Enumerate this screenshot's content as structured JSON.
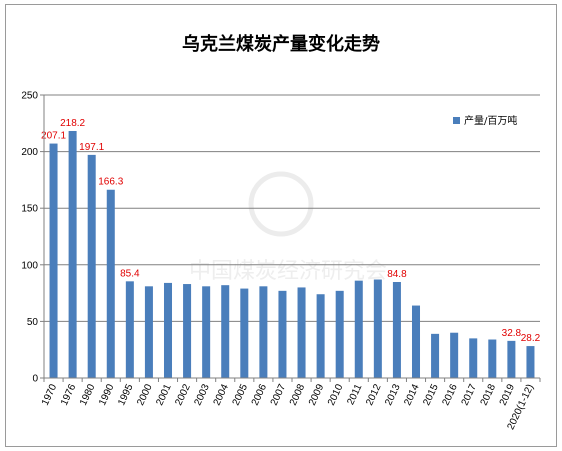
{
  "chart_data": {
    "type": "bar",
    "title": "乌克兰煤炭产量变化走势",
    "xlabel": "",
    "ylabel": "",
    "ylim": [
      0,
      250
    ],
    "yticks": [
      0,
      50,
      100,
      150,
      200,
      250
    ],
    "grid": true,
    "legend_position": "top-right",
    "bar_color": "#4a7ebb",
    "label_color": "#e10000",
    "watermark": "中国煤炭经济研究会",
    "categories": [
      "1970",
      "1976",
      "1980",
      "1990",
      "1995",
      "2000",
      "2001",
      "2002",
      "2003",
      "2004",
      "2005",
      "2006",
      "2007",
      "2008",
      "2009",
      "2010",
      "2011",
      "2012",
      "2013",
      "2014",
      "2015",
      "2016",
      "2017",
      "2018",
      "2019",
      "2020(1-12)"
    ],
    "series": [
      {
        "name": "产量/百万吨",
        "values": [
          207.1,
          218.2,
          197.1,
          166.3,
          85.4,
          81,
          84,
          83,
          81,
          82,
          79,
          81,
          77,
          80,
          74,
          77,
          86,
          87,
          84.8,
          64,
          39,
          40,
          35,
          34,
          32.8,
          28.2
        ]
      }
    ],
    "data_labels": [
      {
        "index": 0,
        "text": "207.1"
      },
      {
        "index": 1,
        "text": "218.2"
      },
      {
        "index": 2,
        "text": "197.1"
      },
      {
        "index": 3,
        "text": "166.3"
      },
      {
        "index": 4,
        "text": "85.4"
      },
      {
        "index": 18,
        "text": "84.8"
      },
      {
        "index": 24,
        "text": "32.8"
      },
      {
        "index": 25,
        "text": "28.2"
      }
    ]
  }
}
